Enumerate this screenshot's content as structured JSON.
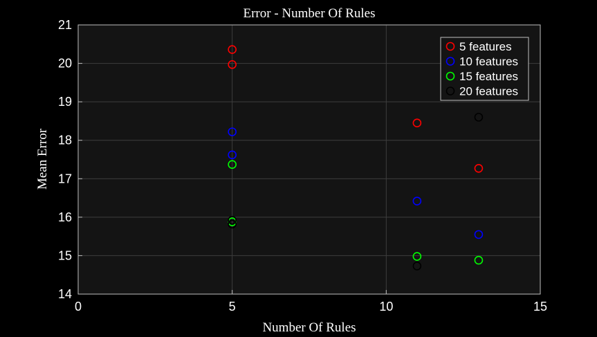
{
  "chart_data": {
    "type": "scatter",
    "title": "Error - Number Of Rules",
    "xlabel": "Number Of Rules",
    "ylabel": "Mean Error",
    "xlim": [
      0,
      15
    ],
    "ylim": [
      14,
      21
    ],
    "xticks": [
      0,
      5,
      10,
      15
    ],
    "yticks": [
      14,
      15,
      16,
      17,
      18,
      19,
      20,
      21
    ],
    "grid": true,
    "legend_position": "top-right",
    "series": [
      {
        "name": "5 features",
        "color": "#ff0000",
        "x": [
          5,
          5,
          11,
          13
        ],
        "y": [
          20.36,
          19.97,
          18.45,
          17.27
        ]
      },
      {
        "name": "10 features",
        "color": "#0000ff",
        "x": [
          5,
          5,
          11,
          13
        ],
        "y": [
          18.22,
          17.62,
          16.42,
          15.55
        ]
      },
      {
        "name": "15 features",
        "color": "#00ff00",
        "x": [
          5,
          5,
          11,
          13
        ],
        "y": [
          17.37,
          15.88,
          14.98,
          14.88
        ]
      },
      {
        "name": "20 features",
        "color": "#000000",
        "x": [
          5,
          5,
          11,
          13
        ],
        "y": [
          15.92,
          15.82,
          14.73,
          18.6
        ]
      }
    ]
  }
}
